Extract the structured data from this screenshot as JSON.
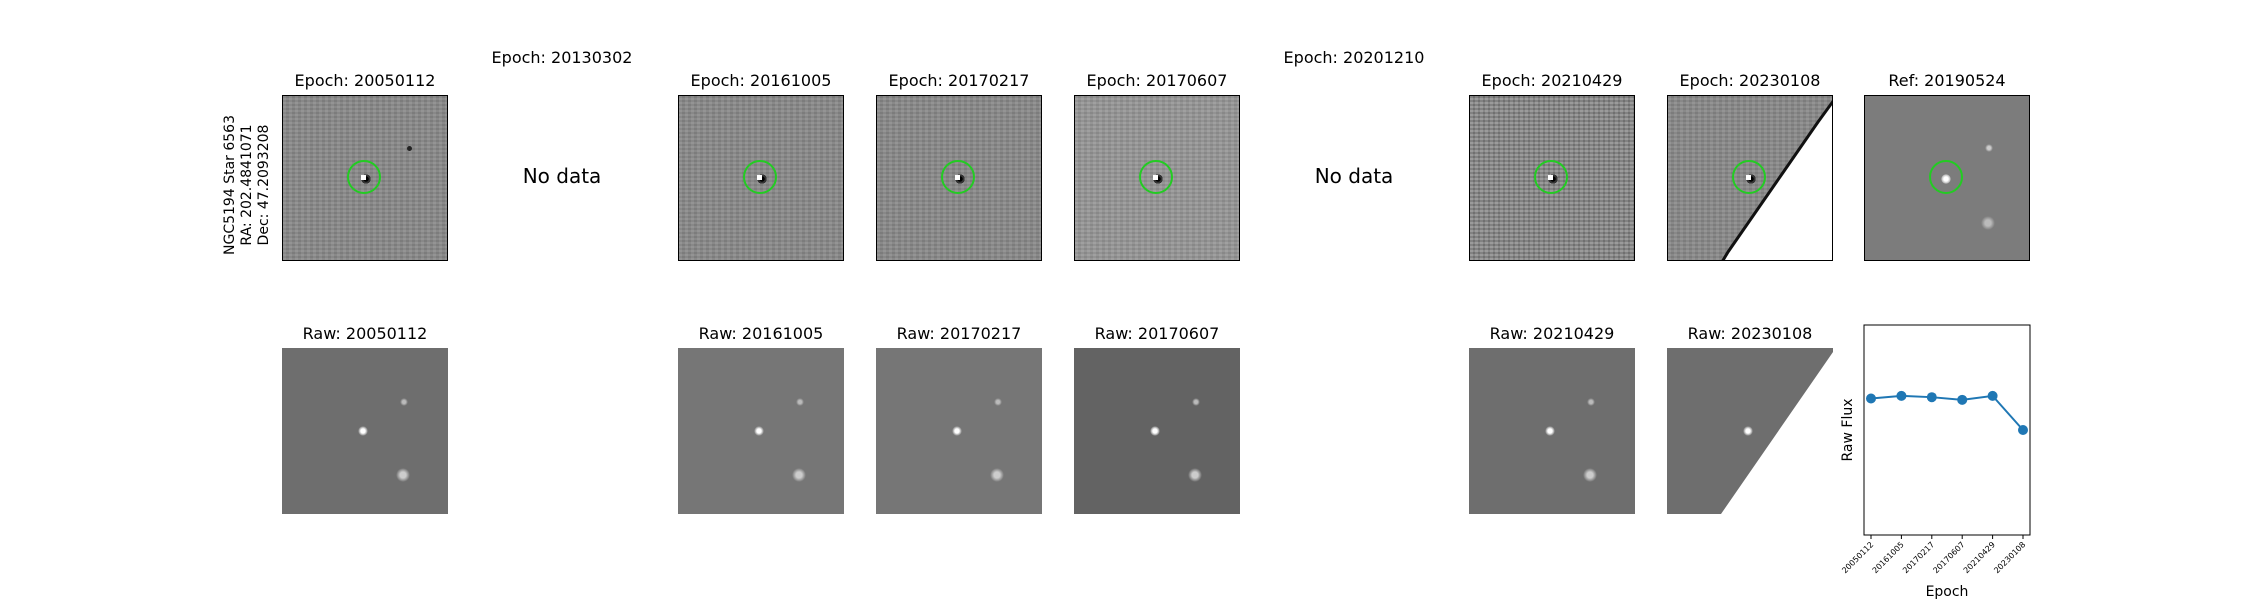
{
  "object_label": {
    "name": "NGC5194 Star 6563",
    "ra": "RA: 202.4841071",
    "dec": "Dec: 47.2093208"
  },
  "diff_titles": {
    "e1": "Epoch: 20050112",
    "e2": "Epoch: 20130302",
    "e3": "Epoch: 20161005",
    "e4": "Epoch: 20170217",
    "e5": "Epoch: 20170607",
    "e6": "Epoch: 20201210",
    "e7": "Epoch: 20210429",
    "e8": "Epoch: 20230108",
    "ref": "Ref: 20190524"
  },
  "raw_titles": {
    "r1": "Raw: 20050112",
    "r3": "Raw: 20161005",
    "r4": "Raw: 20170217",
    "r5": "Raw: 20170607",
    "r7": "Raw: 20210429",
    "r8": "Raw: 20230108"
  },
  "no_data_text": "No data",
  "colors": {
    "marker_circle": "#22cc22",
    "series": "#1f77b4"
  },
  "chart_data": {
    "type": "line",
    "xlabel": "Epoch",
    "ylabel": "Raw Flux",
    "categories": [
      "20050112",
      "20161005",
      "20170217",
      "20170607",
      "20210429",
      "20230108"
    ],
    "series": [
      {
        "values": [
          0.72,
          0.73,
          0.725,
          0.715,
          0.73,
          0.6
        ]
      }
    ],
    "ylim": [
      0.2,
      1.0
    ],
    "grid": false
  }
}
